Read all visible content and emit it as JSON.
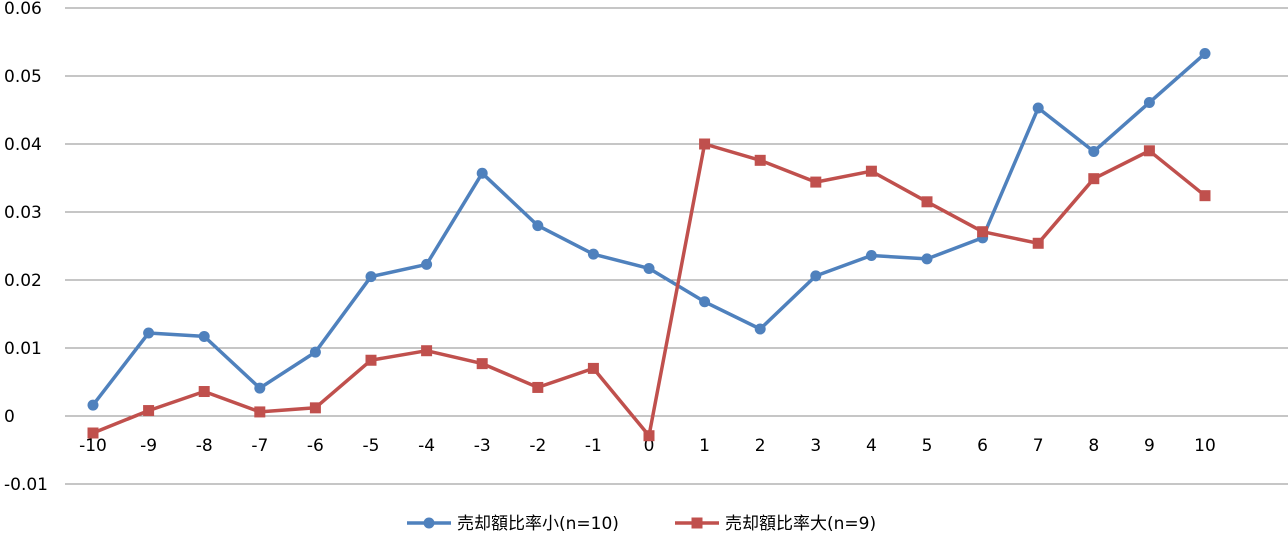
{
  "chart_data": {
    "type": "line",
    "title": "",
    "xlabel": "",
    "ylabel": "",
    "categories": [
      "-10",
      "-9",
      "-8",
      "-7",
      "-6",
      "-5",
      "-4",
      "-3",
      "-2",
      "-1",
      "0",
      "1",
      "2",
      "3",
      "4",
      "5",
      "6",
      "7",
      "8",
      "9",
      "10"
    ],
    "y_ticks": [
      "0.06",
      "0.05",
      "0.04",
      "0.03",
      "0.02",
      "0.01",
      "0",
      "-0.01"
    ],
    "ylim": [
      -0.01,
      0.06
    ],
    "grid": true,
    "legend_position": "bottom",
    "series": [
      {
        "name": "売却額比率小(n=10)",
        "color": "#4f81bd",
        "marker": "circle",
        "values": [
          0.0016,
          0.0122,
          0.0117,
          0.0041,
          0.0094,
          0.0205,
          0.0223,
          0.0357,
          0.028,
          0.0238,
          0.0217,
          0.0168,
          0.0128,
          0.0206,
          0.0236,
          0.0231,
          0.0262,
          0.0453,
          0.0389,
          0.0461,
          0.0533
        ]
      },
      {
        "name": "売却額比率大(n=9)",
        "color": "#c0504d",
        "marker": "square",
        "values": [
          -0.0025,
          0.0008,
          0.0036,
          0.0006,
          0.0012,
          0.0082,
          0.0096,
          0.0077,
          0.0042,
          0.007,
          -0.0029,
          0.04,
          0.0376,
          0.0344,
          0.036,
          0.0315,
          0.0271,
          0.0254,
          0.0349,
          0.039,
          0.0324
        ]
      }
    ]
  }
}
